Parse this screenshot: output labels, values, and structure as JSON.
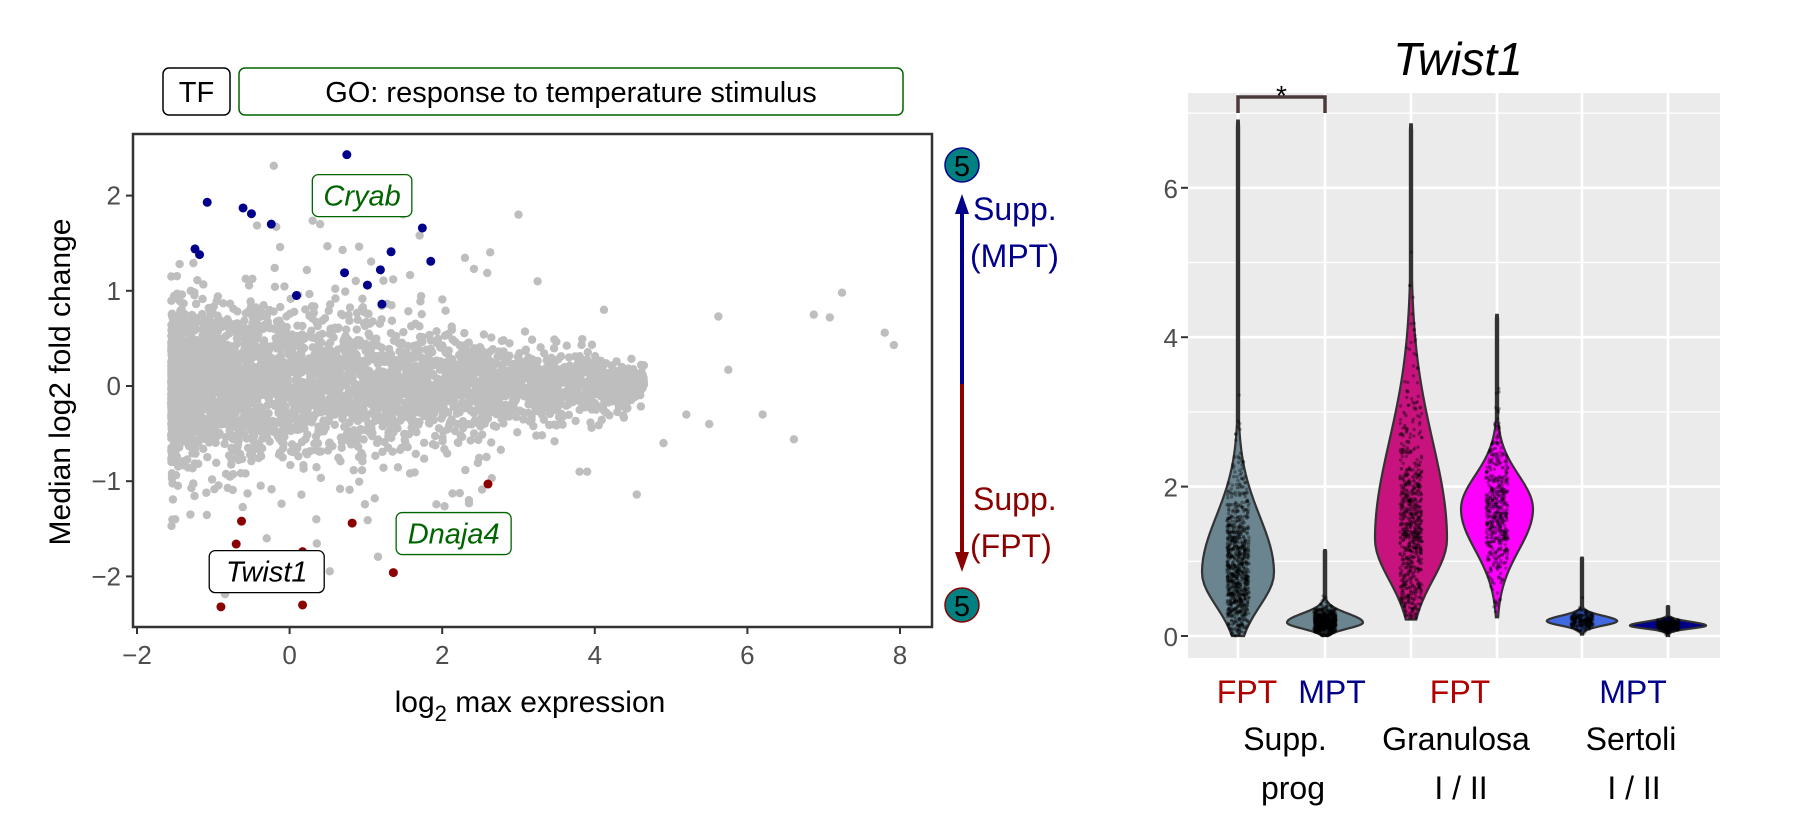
{
  "chart_data": [
    {
      "type": "scatter",
      "header_tags": [
        "TF",
        "GO: response to temperature stimulus"
      ],
      "xlabel": "log2 max expression",
      "xlabel_parts": {
        "pre": "log",
        "sub": "2",
        "post": " max expression"
      },
      "ylabel": "Median log2 fold change",
      "xlim": [
        -2,
        8.5
      ],
      "ylim": [
        -2.6,
        2.5
      ],
      "xticks": [
        "-2",
        "0",
        "2",
        "4",
        "6",
        "8"
      ],
      "xtick_values": [
        -2,
        0,
        2,
        4,
        6,
        8
      ],
      "yticks": [
        "-2",
        "-1",
        "0",
        "1",
        "2"
      ],
      "ytick_values": [
        -2,
        -1,
        0,
        1,
        2
      ],
      "colors": {
        "background": "#bebebe",
        "up": "#00008b",
        "down": "#8b0000",
        "go_label": "#006400",
        "badge": "#008080"
      },
      "labels": [
        {
          "text": "Cryab",
          "x": 0.95,
          "y": 2.0,
          "color": "#006400",
          "category": "GO"
        },
        {
          "text": "Dnaja4",
          "x": 2.15,
          "y": -1.55,
          "color": "#006400",
          "category": "GO"
        },
        {
          "text": "Twist1",
          "x": -0.3,
          "y": -1.95,
          "color": "#000000",
          "category": "TF"
        }
      ],
      "up_points": [
        [
          0.75,
          2.43
        ],
        [
          -1.08,
          1.93
        ],
        [
          -0.61,
          1.87
        ],
        [
          -0.5,
          1.81
        ],
        [
          -0.24,
          1.7
        ],
        [
          1.74,
          1.66
        ],
        [
          -1.24,
          1.44
        ],
        [
          -1.18,
          1.38
        ],
        [
          1.85,
          1.31
        ],
        [
          1.33,
          1.41
        ],
        [
          0.72,
          1.19
        ],
        [
          1.02,
          1.06
        ],
        [
          1.19,
          1.22
        ],
        [
          0.09,
          0.95
        ],
        [
          1.21,
          0.86
        ]
      ],
      "down_points": [
        [
          2.6,
          -1.03
        ],
        [
          -0.63,
          -1.42
        ],
        [
          0.82,
          -1.44
        ],
        [
          -0.7,
          -1.66
        ],
        [
          0.17,
          -1.74
        ],
        [
          1.36,
          -1.96
        ],
        [
          -0.9,
          -2.32
        ],
        [
          0.17,
          -2.3
        ]
      ],
      "gray_outliers": [
        [
          7.24,
          0.98
        ],
        [
          6.87,
          0.75
        ],
        [
          7.08,
          0.72
        ],
        [
          7.8,
          0.56
        ],
        [
          7.92,
          0.43
        ],
        [
          5.62,
          0.73
        ],
        [
          4.12,
          0.8
        ],
        [
          3.25,
          1.1
        ],
        [
          3.0,
          1.8
        ],
        [
          0.4,
          1.7
        ],
        [
          5.75,
          0.17
        ],
        [
          6.61,
          -0.56
        ],
        [
          4.55,
          -1.14
        ],
        [
          2.35,
          -1.2
        ],
        [
          -1.3,
          -1.35
        ],
        [
          -1.5,
          -1.4
        ],
        [
          -0.3,
          -1.6
        ],
        [
          0.35,
          -1.4
        ],
        [
          5.2,
          -0.3
        ],
        [
          4.9,
          -0.6
        ],
        [
          5.5,
          -0.4
        ],
        [
          6.2,
          -0.3
        ],
        [
          3.8,
          -0.9
        ],
        [
          3.9,
          -0.9
        ]
      ],
      "side_legend": {
        "up": {
          "label_line1": "Supp.",
          "label_line2": "(MPT)",
          "count": "5"
        },
        "down": {
          "label_line1": "Supp.",
          "label_line2": "(FPT)",
          "count": "5"
        }
      }
    },
    {
      "type": "violin",
      "title": "Twist1",
      "ylim": [
        -0.2,
        7.2
      ],
      "yticks": [
        "0",
        "2",
        "4",
        "6"
      ],
      "ytick_values": [
        0,
        2,
        4,
        6
      ],
      "significance": {
        "label": "*",
        "from": 0,
        "to": 1
      },
      "groups": [
        {
          "name_line1": "Supp.",
          "name_line2": "prog",
          "conditions": [
            "FPT",
            "MPT"
          ]
        },
        {
          "name_line1": "Granulosa",
          "name_line2": "I / II",
          "conditions": [
            "FPT"
          ]
        },
        {
          "name_line1": "Sertoli",
          "name_line2": "I / II",
          "conditions": [
            "MPT"
          ]
        }
      ],
      "condition_colors": {
        "FPT": "#b00000",
        "MPT": "#00008b"
      },
      "violins": [
        {
          "group": "Supp. prog",
          "condition": "FPT",
          "min": 0.0,
          "max": 6.9,
          "mode": 0.85,
          "sd_below": 0.45,
          "sd_above": 0.75,
          "relative_width": 0.9,
          "color": "#6a8590",
          "n_points": 900
        },
        {
          "group": "Supp. prog",
          "condition": "MPT",
          "min": 0.0,
          "max": 1.15,
          "mode": 0.18,
          "sd_below": 0.08,
          "sd_above": 0.12,
          "relative_width": 0.95,
          "color": "#6a8590",
          "n_points": 700
        },
        {
          "group": "Granulosa I",
          "condition": "FPT",
          "min": 0.22,
          "max": 6.85,
          "mode": 1.3,
          "sd_below": 0.55,
          "sd_above": 1.3,
          "relative_width": 0.9,
          "color": "#c8137f",
          "n_points": 700
        },
        {
          "group": "Granulosa II",
          "condition": "FPT",
          "min": 0.25,
          "max": 4.3,
          "mode": 1.7,
          "sd_below": 0.55,
          "sd_above": 0.45,
          "relative_width": 0.9,
          "color": "#ff00ff",
          "n_points": 500
        },
        {
          "group": "Sertoli I",
          "condition": "MPT",
          "min": 0.02,
          "max": 1.05,
          "mode": 0.2,
          "sd_below": 0.06,
          "sd_above": 0.07,
          "relative_width": 0.88,
          "color": "#4169e1",
          "n_points": 250
        },
        {
          "group": "Sertoli II",
          "condition": "MPT",
          "min": 0.0,
          "max": 0.4,
          "mode": 0.14,
          "sd_below": 0.04,
          "sd_above": 0.05,
          "relative_width": 0.95,
          "color": "#00008b",
          "n_points": 250
        }
      ]
    }
  ]
}
